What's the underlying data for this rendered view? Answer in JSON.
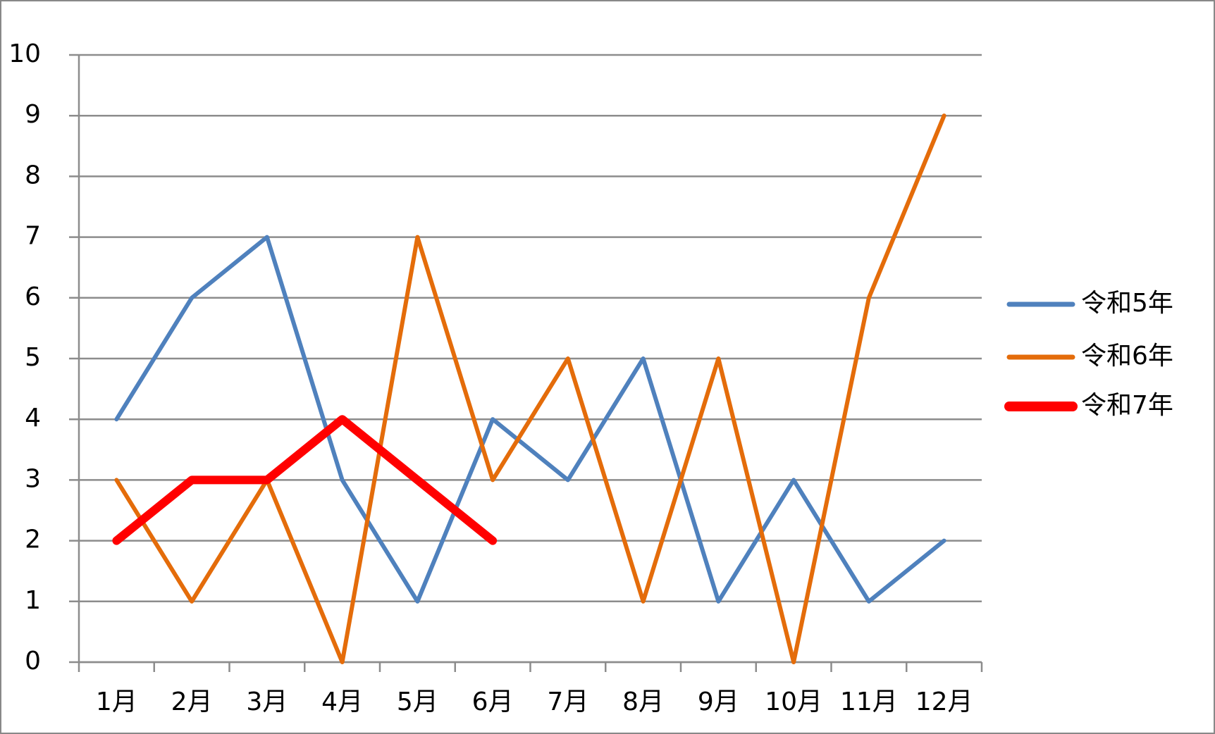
{
  "chart_data": {
    "type": "line",
    "categories": [
      "1月",
      "2月",
      "3月",
      "4月",
      "5月",
      "6月",
      "7月",
      "8月",
      "9月",
      "10月",
      "11月",
      "12月"
    ],
    "series": [
      {
        "name": "令和5年",
        "color": "#4f81bd",
        "values": [
          4,
          6,
          7,
          3,
          1,
          4,
          3,
          5,
          1,
          3,
          1,
          2
        ]
      },
      {
        "name": "令和6年",
        "color": "#e46c0a",
        "values": [
          3,
          1,
          3,
          0,
          7,
          3,
          5,
          1,
          5,
          0,
          6,
          9
        ]
      },
      {
        "name": "令和7年",
        "color": "#ff0000",
        "values": [
          2,
          3,
          3,
          4,
          3,
          2,
          null,
          null,
          null,
          null,
          null,
          null
        ]
      }
    ],
    "ylim": [
      0,
      10
    ],
    "yticks": [
      0,
      1,
      2,
      3,
      4,
      5,
      6,
      7,
      8,
      9,
      10
    ],
    "grid": true,
    "legend": "right"
  }
}
